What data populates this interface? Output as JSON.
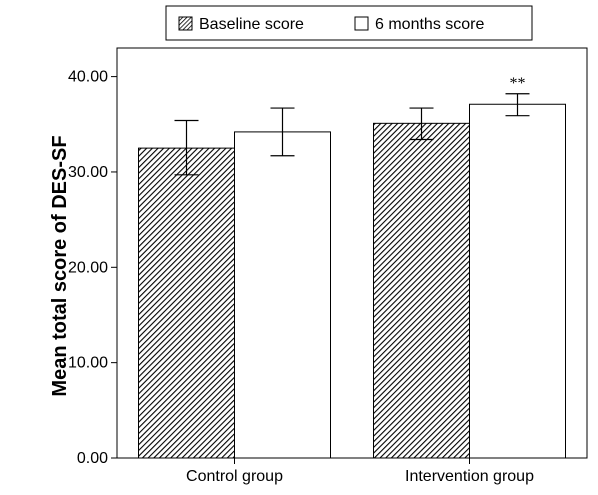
{
  "chart_data": {
    "type": "bar",
    "title": "",
    "xlabel": "",
    "ylabel": "Mean total score of DES-SF",
    "ylim": [
      0,
      43
    ],
    "yticks": [
      "0.00",
      "10.00",
      "20.00",
      "30.00",
      "40.00"
    ],
    "ytick_values": [
      0,
      10,
      20,
      30,
      40
    ],
    "categories": [
      "Control group",
      "Intervention group"
    ],
    "legend_position": "top-center",
    "grid": false,
    "series": [
      {
        "name": "Baseline score",
        "pattern": "hatched",
        "values": [
          32.5,
          35.1
        ],
        "err_low": [
          29.7,
          33.4
        ],
        "err_high": [
          35.4,
          36.7
        ]
      },
      {
        "name": "6 months score",
        "pattern": "white",
        "values": [
          34.2,
          37.1
        ],
        "err_low": [
          31.7,
          35.9
        ],
        "err_high": [
          36.7,
          38.2
        ]
      }
    ],
    "annotations": [
      {
        "text": "**",
        "category": 1,
        "series": 1
      }
    ],
    "colors": {
      "stroke": "#000000",
      "fill_white": "#ffffff",
      "hatch": "#000000"
    }
  }
}
